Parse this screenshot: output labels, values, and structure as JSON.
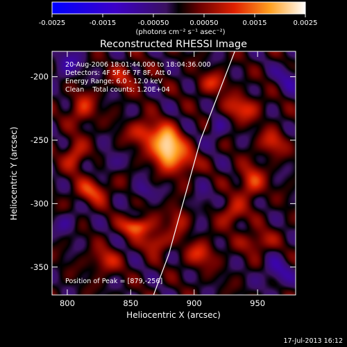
{
  "chart_data": {
    "type": "heatmap",
    "title": "Reconstructed RHESSI Image",
    "colorbar": {
      "ticks": [
        "-0.0025",
        "-0.0015",
        "-0.00050",
        "0.00050",
        "0.0015",
        "0.0025"
      ],
      "label": "(photons cm⁻² s⁻¹ asec⁻²)",
      "range": [
        -0.0025,
        0.0025
      ]
    },
    "xlabel": "Heliocentric X (arcsec)",
    "ylabel": "Heliocentric Y (arcsec)",
    "xlim": [
      788,
      980
    ],
    "ylim": [
      -372,
      -180
    ],
    "xticks": [
      800,
      850,
      900,
      950
    ],
    "yticks": [
      -200,
      -250,
      -300,
      -350
    ],
    "info_lines": [
      "20-Aug-2006 18:01:44.000 to 18:04:36.000",
      "Detectors: 4F 5F 6F 7F 8F, Att 0",
      "Energy Range: 6.0 - 12.0 keV",
      "Clean    Total counts: 1.20E+04"
    ],
    "peak_text": "Position of Peak = [879,-256]",
    "peak": [
      879,
      -256
    ],
    "limb": [
      [
        932,
        -180
      ],
      [
        905,
        -250
      ],
      [
        880,
        -340
      ],
      [
        868,
        -372
      ]
    ],
    "sources": [
      {
        "x": 879,
        "y": -256,
        "amp": 0.0026,
        "sx": 8,
        "sy": 10
      },
      {
        "x": 862,
        "y": -244,
        "amp": 0.0012,
        "sx": 9,
        "sy": 7
      },
      {
        "x": 893,
        "y": -268,
        "amp": 0.001,
        "sx": 7,
        "sy": 7
      },
      {
        "x": 855,
        "y": -318,
        "amp": 0.0016,
        "sx": 8,
        "sy": 5
      },
      {
        "x": 870,
        "y": -330,
        "amp": 0.0011,
        "sx": 7,
        "sy": 6
      },
      {
        "x": 888,
        "y": -312,
        "amp": 0.0009,
        "sx": 6,
        "sy": 8
      },
      {
        "x": 806,
        "y": -262,
        "amp": 0.0011,
        "sx": 6,
        "sy": 8
      },
      {
        "x": 812,
        "y": -225,
        "amp": 0.001,
        "sx": 7,
        "sy": 9
      },
      {
        "x": 820,
        "y": -290,
        "amp": 0.0011,
        "sx": 9,
        "sy": 7
      },
      {
        "x": 830,
        "y": -345,
        "amp": 0.0009,
        "sx": 8,
        "sy": 7
      },
      {
        "x": 937,
        "y": -225,
        "amp": 0.0011,
        "sx": 10,
        "sy": 7
      },
      {
        "x": 945,
        "y": -283,
        "amp": 0.0012,
        "sx": 7,
        "sy": 9
      },
      {
        "x": 962,
        "y": -252,
        "amp": 0.001,
        "sx": 7,
        "sy": 7
      },
      {
        "x": 930,
        "y": -308,
        "amp": 0.001,
        "sx": 7,
        "sy": 7
      },
      {
        "x": 950,
        "y": -330,
        "amp": 0.0009,
        "sx": 9,
        "sy": 6
      },
      {
        "x": 905,
        "y": -340,
        "amp": 0.001,
        "sx": 8,
        "sy": 7
      },
      {
        "x": 915,
        "y": -205,
        "amp": 0.0009,
        "sx": 8,
        "sy": 6
      },
      {
        "x": 845,
        "y": -200,
        "amp": 0.0008,
        "sx": 8,
        "sy": 7
      },
      {
        "x": 965,
        "y": -355,
        "amp": -0.0008,
        "sx": 8,
        "sy": 8
      },
      {
        "x": 800,
        "y": -190,
        "amp": -0.0008,
        "sx": 8,
        "sy": 8
      },
      {
        "x": 975,
        "y": -200,
        "amp": -0.0007,
        "sx": 7,
        "sy": 8
      },
      {
        "x": 832,
        "y": -268,
        "amp": -0.0006,
        "sx": 6,
        "sy": 6
      },
      {
        "x": 905,
        "y": -300,
        "amp": -0.0006,
        "sx": 5,
        "sy": 7
      },
      {
        "x": 860,
        "y": -290,
        "amp": -0.0007,
        "sx": 6,
        "sy": 5
      },
      {
        "x": 918,
        "y": -240,
        "amp": -0.0007,
        "sx": 5,
        "sy": 8
      },
      {
        "x": 800,
        "y": -315,
        "amp": -0.0006,
        "sx": 7,
        "sy": 6
      }
    ]
  },
  "footer": {
    "timestamp": "17-Jul-2013 16:12"
  },
  "colors": {
    "background": "#000000",
    "text": "#ffffff",
    "limb": "#ffffff"
  }
}
